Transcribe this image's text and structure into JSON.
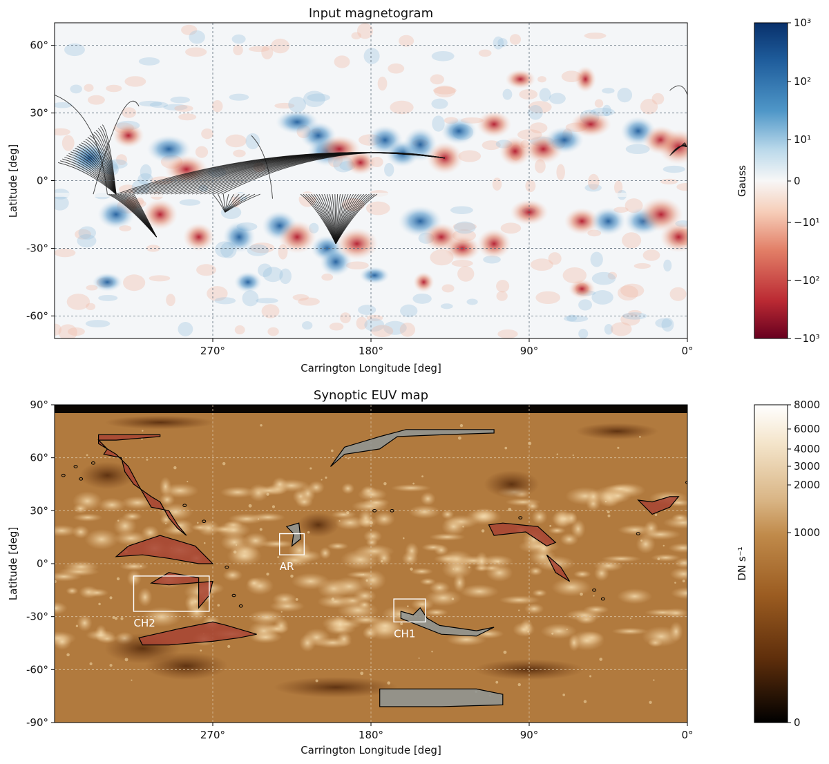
{
  "chart_data": [
    {
      "type": "heatmap",
      "title": "Input magnetogram",
      "xlabel": "Carrington Longitude [deg]",
      "ylabel": "Latitude [deg]",
      "xlim": [
        360,
        0
      ],
      "ylim": [
        -70,
        70
      ],
      "xticks": [
        90,
        180,
        270,
        0
      ],
      "xtick_labels": [
        "90°",
        "180°",
        "270°",
        "0°"
      ],
      "yticks": [
        60,
        30,
        0,
        -30,
        -60
      ],
      "ytick_labels": [
        "60°",
        "30°",
        "0°",
        "-30°",
        "-60°"
      ],
      "grid": true,
      "colorbar": {
        "label": "Gauss",
        "scale": "symlog",
        "range": [
          -1000,
          1000
        ],
        "ticks": [
          1000,
          100,
          10,
          0,
          -10,
          -100,
          -1000
        ],
        "tick_labels": [
          "10³",
          "10²",
          "10¹",
          "0",
          "−10¹",
          "−10²",
          "−10³"
        ],
        "colors": {
          "positive": "#08306b",
          "mid": "#f7f7f7",
          "negative": "#67001f"
        }
      },
      "regions": [
        {
          "lon": 340,
          "lat": 10,
          "sign": 1
        },
        {
          "lon": 318,
          "lat": 20,
          "sign": -1
        },
        {
          "lon": 295,
          "lat": 14,
          "sign": 1
        },
        {
          "lon": 285,
          "lat": 5,
          "sign": -1
        },
        {
          "lon": 222,
          "lat": 26,
          "sign": 1
        },
        {
          "lon": 210,
          "lat": 20,
          "sign": 1
        },
        {
          "lon": 205,
          "lat": 13,
          "sign": 1
        },
        {
          "lon": 198,
          "lat": 14,
          "sign": -1
        },
        {
          "lon": 186,
          "lat": 8,
          "sign": -1
        },
        {
          "lon": 172,
          "lat": 18,
          "sign": 1
        },
        {
          "lon": 162,
          "lat": 12,
          "sign": 1
        },
        {
          "lon": 152,
          "lat": 16,
          "sign": 1
        },
        {
          "lon": 138,
          "lat": 10,
          "sign": -1
        },
        {
          "lon": 130,
          "lat": 22,
          "sign": 1
        },
        {
          "lon": 110,
          "lat": 25,
          "sign": -1
        },
        {
          "lon": 98,
          "lat": 13,
          "sign": -1
        },
        {
          "lon": 82,
          "lat": 14,
          "sign": -1
        },
        {
          "lon": 70,
          "lat": 18,
          "sign": 1
        },
        {
          "lon": 55,
          "lat": 25,
          "sign": -1
        },
        {
          "lon": 28,
          "lat": 22,
          "sign": 1
        },
        {
          "lon": 15,
          "lat": 18,
          "sign": -1
        },
        {
          "lon": 5,
          "lat": 15,
          "sign": -1
        },
        {
          "lon": 95,
          "lat": 45,
          "sign": -1
        },
        {
          "lon": 58,
          "lat": 45,
          "sign": -1
        },
        {
          "lon": 325,
          "lat": -15,
          "sign": 1
        },
        {
          "lon": 300,
          "lat": -15,
          "sign": -1
        },
        {
          "lon": 278,
          "lat": -25,
          "sign": -1
        },
        {
          "lon": 255,
          "lat": -25,
          "sign": 1
        },
        {
          "lon": 232,
          "lat": -20,
          "sign": 1
        },
        {
          "lon": 222,
          "lat": -25,
          "sign": -1
        },
        {
          "lon": 205,
          "lat": -30,
          "sign": 1
        },
        {
          "lon": 200,
          "lat": -36,
          "sign": 1
        },
        {
          "lon": 188,
          "lat": -28,
          "sign": -1
        },
        {
          "lon": 178,
          "lat": -42,
          "sign": 1
        },
        {
          "lon": 152,
          "lat": -18,
          "sign": 1
        },
        {
          "lon": 140,
          "lat": -25,
          "sign": -1
        },
        {
          "lon": 128,
          "lat": -30,
          "sign": -1
        },
        {
          "lon": 110,
          "lat": -28,
          "sign": -1
        },
        {
          "lon": 90,
          "lat": -14,
          "sign": -1
        },
        {
          "lon": 60,
          "lat": -18,
          "sign": -1
        },
        {
          "lon": 45,
          "lat": -18,
          "sign": 1
        },
        {
          "lon": 25,
          "lat": -18,
          "sign": 1
        },
        {
          "lon": 15,
          "lat": -15,
          "sign": -1
        },
        {
          "lon": 5,
          "lat": -25,
          "sign": -1
        },
        {
          "lon": 330,
          "lat": -45,
          "sign": 1
        },
        {
          "lon": 250,
          "lat": -45,
          "sign": 1
        },
        {
          "lon": 150,
          "lat": -45,
          "sign": -1
        },
        {
          "lon": 60,
          "lat": -48,
          "sign": -1
        }
      ]
    },
    {
      "type": "heatmap",
      "title": "Synoptic EUV map",
      "xlabel": "Carrington Longitude [deg]",
      "ylabel": "Latitude [deg]",
      "xlim": [
        360,
        0
      ],
      "ylim": [
        -90,
        90
      ],
      "xticks": [
        90,
        180,
        270,
        0
      ],
      "xtick_labels": [
        "90°",
        "180°",
        "270°",
        "0°"
      ],
      "yticks": [
        90,
        60,
        30,
        0,
        -30,
        -60,
        -90
      ],
      "ytick_labels": [
        "90°",
        "60°",
        "30°",
        "0°",
        "-30°",
        "-60°",
        "-90°"
      ],
      "grid": true,
      "colorbar": {
        "label": "DN s⁻¹",
        "range": [
          0,
          8000
        ],
        "ticks": [
          8000,
          6000,
          4000,
          3000,
          2000,
          1000,
          0
        ],
        "tick_labels": [
          "8000",
          "6000",
          "4000",
          "3000",
          "2000",
          "1000",
          "0"
        ],
        "colors": {
          "high": "#ffffff",
          "mid": "#c08a4a",
          "low": "#000000"
        }
      },
      "annotations": [
        {
          "text": "AR",
          "box_lon": [
            232,
            218
          ],
          "box_lat": [
            17,
            5
          ]
        },
        {
          "text": "CH2",
          "box_lon": [
            315,
            272
          ],
          "box_lat": [
            -7,
            -27
          ]
        },
        {
          "text": "CH1",
          "box_lon": [
            167,
            149
          ],
          "box_lat": [
            -20,
            -33
          ]
        }
      ],
      "regions": [
        {
          "type": "coronal-hole",
          "fill": "#a84434",
          "label": "CH2",
          "path": [
            [
              312,
              -42
            ],
            [
              290,
              -37
            ],
            [
              270,
              -33
            ],
            [
              262,
              -35
            ],
            [
              245,
              -40
            ],
            [
              255,
              -42
            ],
            [
              270,
              -44
            ],
            [
              295,
              -46
            ],
            [
              310,
              -46
            ],
            [
              312,
              -42
            ]
          ]
        },
        {
          "type": "coronal-hole",
          "fill": "#a84434",
          "path": [
            [
              335,
              73
            ],
            [
              325,
              73
            ],
            [
              300,
              73
            ],
            [
              300,
              72
            ],
            [
              325,
              70
            ],
            [
              335,
              70
            ],
            [
              330,
              65
            ],
            [
              332,
              62
            ],
            [
              322,
              60
            ],
            [
              320,
              52
            ],
            [
              315,
              45
            ],
            [
              305,
              38
            ],
            [
              300,
              35
            ],
            [
              295,
              26
            ],
            [
              290,
              20
            ],
            [
              285,
              16
            ],
            [
              290,
              22
            ],
            [
              295,
              30
            ],
            [
              305,
              32
            ],
            [
              312,
              44
            ],
            [
              318,
              55
            ],
            [
              325,
              62
            ],
            [
              335,
              68
            ],
            [
              335,
              73
            ]
          ]
        },
        {
          "type": "coronal-hole",
          "fill": "#a84434",
          "path": [
            [
              305,
              -11
            ],
            [
              295,
              -5
            ],
            [
              278,
              -8
            ],
            [
              278,
              -25
            ],
            [
              272,
              -18
            ],
            [
              270,
              -10
            ],
            [
              282,
              -11
            ],
            [
              295,
              -12
            ],
            [
              305,
              -11
            ]
          ]
        },
        {
          "type": "coronal-hole",
          "fill": "#a84434",
          "path": [
            [
              325,
              4
            ],
            [
              310,
              5
            ],
            [
              295,
              3
            ],
            [
              278,
              0
            ],
            [
              270,
              0
            ],
            [
              280,
              10
            ],
            [
              300,
              16
            ],
            [
              318,
              10
            ],
            [
              325,
              4
            ]
          ]
        },
        {
          "type": "coronal-hole",
          "fill": "#a84434",
          "path": [
            [
              113,
              22
            ],
            [
              105,
              23
            ],
            [
              85,
              21
            ],
            [
              75,
              12
            ],
            [
              80,
              10
            ],
            [
              92,
              18
            ],
            [
              110,
              16
            ],
            [
              113,
              22
            ]
          ]
        },
        {
          "type": "coronal-hole",
          "fill": "#a84434",
          "path": [
            [
              28,
              36
            ],
            [
              20,
              35
            ],
            [
              10,
              38
            ],
            [
              5,
              38
            ],
            [
              10,
              32
            ],
            [
              20,
              28
            ],
            [
              28,
              36
            ]
          ]
        },
        {
          "type": "coronal-hole",
          "fill": "#a84434",
          "path": [
            [
              80,
              5
            ],
            [
              75,
              -5
            ],
            [
              67,
              -10
            ],
            [
              72,
              -2
            ],
            [
              80,
              5
            ]
          ]
        },
        {
          "type": "coronal-hole",
          "fill": "#8f9796",
          "label": "CH1",
          "path": [
            [
              163,
              -27
            ],
            [
              156,
              -29
            ],
            [
              152,
              -25
            ],
            [
              148,
              -31
            ],
            [
              141,
              -35
            ],
            [
              120,
              -38
            ],
            [
              110,
              -36
            ],
            [
              120,
              -41
            ],
            [
              140,
              -40
            ],
            [
              163,
              -31
            ],
            [
              163,
              -27
            ]
          ]
        },
        {
          "type": "coronal-hole",
          "fill": "#8f9796",
          "label": "AR",
          "path": [
            [
              225,
              10
            ],
            [
              224,
              17
            ],
            [
              228,
              21
            ],
            [
              221,
              23
            ],
            [
              220,
              14
            ],
            [
              225,
              10
            ]
          ]
        },
        {
          "type": "coronal-hole",
          "fill": "#8f9796",
          "path": [
            [
              203,
              55
            ],
            [
              195,
              62
            ],
            [
              175,
              65
            ],
            [
              165,
              72
            ],
            [
              140,
              73
            ],
            [
              110,
              74
            ],
            [
              110,
              76
            ],
            [
              160,
              76
            ],
            [
              175,
              72
            ],
            [
              195,
              66
            ],
            [
              203,
              55
            ]
          ]
        },
        {
          "type": "coronal-hole",
          "fill": "#8f9796",
          "path": [
            [
              175,
              -71
            ],
            [
              150,
              -71
            ],
            [
              120,
              -71
            ],
            [
              105,
              -74
            ],
            [
              105,
              -80
            ],
            [
              140,
              -81
            ],
            [
              175,
              -81
            ],
            [
              175,
              -71
            ]
          ]
        }
      ]
    }
  ]
}
